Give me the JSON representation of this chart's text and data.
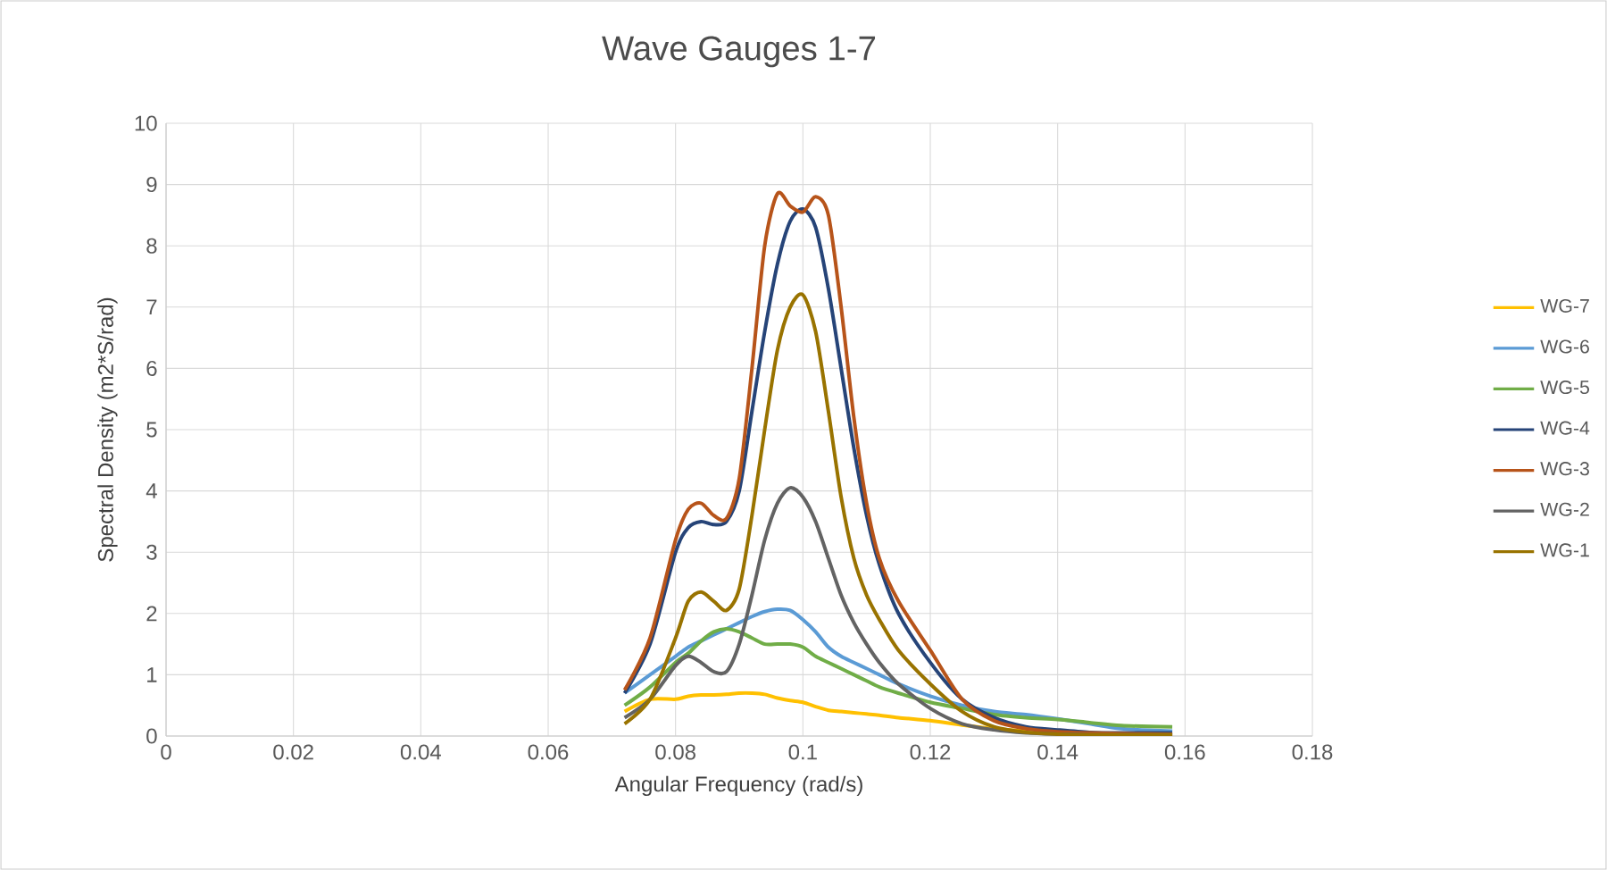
{
  "chart_data": {
    "type": "line",
    "title": "Wave Gauges 1-7",
    "xlabel": "Angular Frequency (rad/s)",
    "ylabel": "Spectral Density (m2*S/rad)",
    "x": [
      0.072,
      0.076,
      0.08,
      0.082,
      0.084,
      0.086,
      0.088,
      0.09,
      0.092,
      0.094,
      0.096,
      0.098,
      0.1,
      0.102,
      0.104,
      0.106,
      0.108,
      0.11,
      0.112,
      0.115,
      0.12,
      0.125,
      0.13,
      0.135,
      0.14,
      0.145,
      0.15,
      0.158
    ],
    "series": [
      {
        "name": "WG-7",
        "color": "#ffc000",
        "values": [
          0.4,
          0.6,
          0.6,
          0.65,
          0.67,
          0.67,
          0.68,
          0.7,
          0.7,
          0.68,
          0.62,
          0.58,
          0.55,
          0.48,
          0.42,
          0.4,
          0.38,
          0.36,
          0.34,
          0.3,
          0.25,
          0.18,
          0.12,
          0.08,
          0.05,
          null,
          null,
          null
        ]
      },
      {
        "name": "WG-6",
        "color": "#5b9bd5",
        "values": [
          0.7,
          1.0,
          1.3,
          1.45,
          1.55,
          1.65,
          1.75,
          1.85,
          1.95,
          2.03,
          2.07,
          2.05,
          1.9,
          1.7,
          1.45,
          1.3,
          1.2,
          1.1,
          1.0,
          0.85,
          0.65,
          0.5,
          0.4,
          0.35,
          0.28,
          0.2,
          0.12,
          0.08
        ]
      },
      {
        "name": "WG-5",
        "color": "#70ad47",
        "values": [
          0.5,
          0.8,
          1.2,
          1.35,
          1.55,
          1.7,
          1.75,
          1.7,
          1.6,
          1.5,
          1.5,
          1.5,
          1.45,
          1.3,
          1.2,
          1.1,
          1.0,
          0.9,
          0.8,
          0.7,
          0.55,
          0.45,
          0.35,
          0.3,
          0.27,
          0.22,
          0.17,
          0.15
        ]
      },
      {
        "name": "WG-4",
        "color": "#264478",
        "values": [
          0.7,
          1.5,
          3.0,
          3.4,
          3.5,
          3.45,
          3.5,
          4.0,
          5.3,
          6.6,
          7.7,
          8.4,
          8.6,
          8.3,
          7.3,
          6.0,
          4.7,
          3.6,
          2.8,
          2.0,
          1.2,
          0.6,
          0.3,
          0.15,
          0.1,
          0.06,
          0.05,
          0.05
        ]
      },
      {
        "name": "WG-3",
        "color": "#b7541a",
        "values": [
          0.75,
          1.6,
          3.2,
          3.7,
          3.8,
          3.6,
          3.55,
          4.2,
          6.0,
          8.0,
          8.85,
          8.65,
          8.55,
          8.8,
          8.5,
          7.0,
          5.2,
          3.8,
          2.9,
          2.2,
          1.4,
          0.6,
          0.25,
          0.12,
          0.07,
          0.05,
          0.04,
          0.03
        ]
      },
      {
        "name": "WG-2",
        "color": "#636363",
        "values": [
          0.3,
          0.6,
          1.15,
          1.3,
          1.2,
          1.05,
          1.05,
          1.5,
          2.3,
          3.2,
          3.8,
          4.05,
          3.9,
          3.5,
          2.9,
          2.3,
          1.85,
          1.5,
          1.2,
          0.85,
          0.45,
          0.2,
          0.1,
          0.05,
          0.03,
          0.02,
          0.02,
          0.02
        ]
      },
      {
        "name": "WG-1",
        "color": "#997300",
        "values": [
          0.2,
          0.6,
          1.6,
          2.2,
          2.35,
          2.2,
          2.05,
          2.4,
          3.6,
          5.0,
          6.3,
          7.0,
          7.2,
          6.6,
          5.3,
          3.9,
          2.9,
          2.3,
          1.9,
          1.4,
          0.85,
          0.4,
          0.15,
          0.06,
          0.03,
          0.02,
          0.02,
          0.02
        ]
      }
    ],
    "xlim": [
      0,
      0.18
    ],
    "xticks": [
      0,
      0.02,
      0.04,
      0.06,
      0.08,
      0.1,
      0.12,
      0.14,
      0.16,
      0.18
    ],
    "ylim": [
      0,
      10
    ],
    "yticks": [
      0,
      1,
      2,
      3,
      4,
      5,
      6,
      7,
      8,
      9,
      10
    ],
    "grid": true,
    "legend": "right",
    "line_style": "solid",
    "marker": "none"
  }
}
